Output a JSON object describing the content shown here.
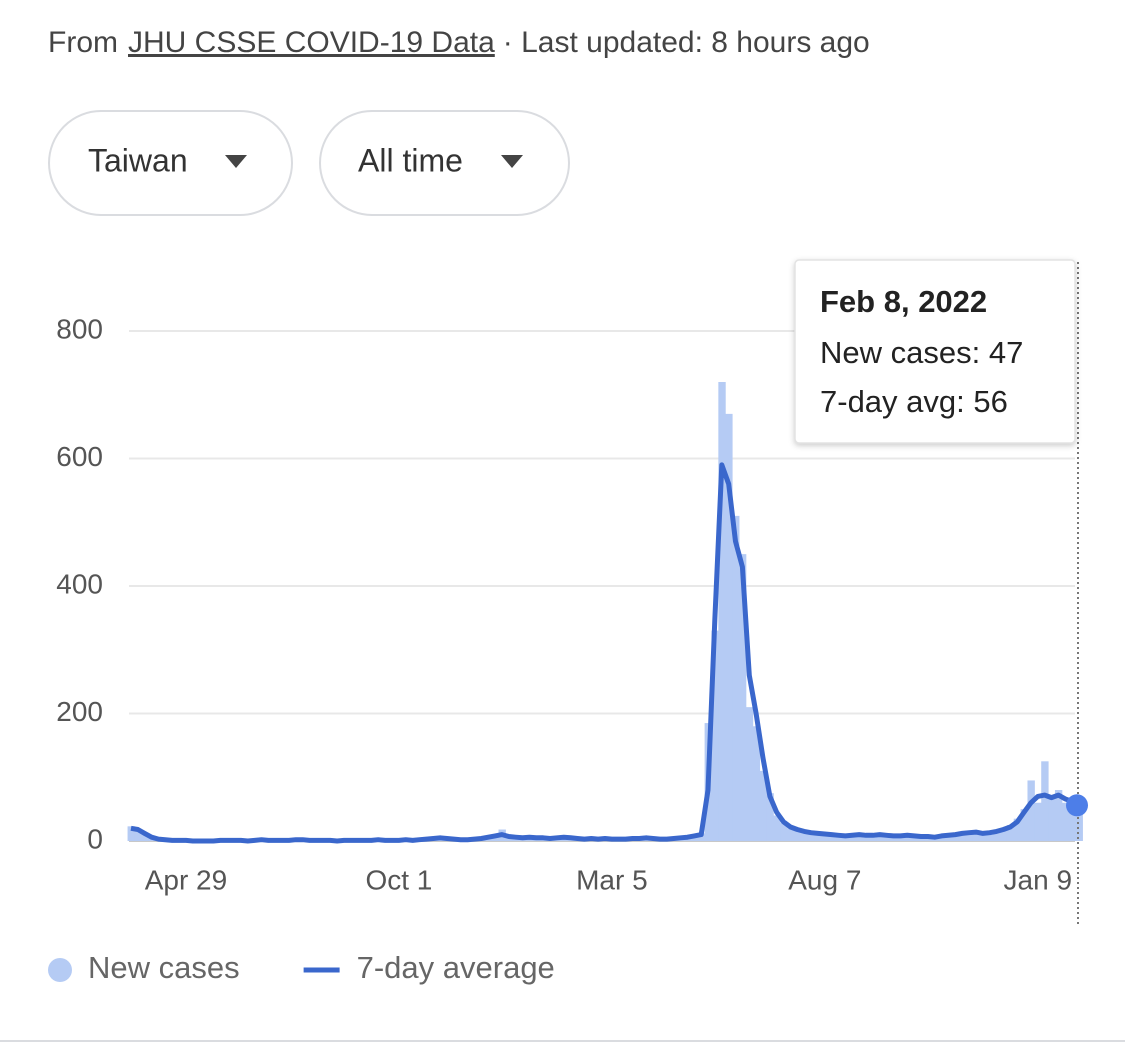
{
  "header": {
    "prefix": "From",
    "source": "JHU CSSE COVID-19 Data",
    "updated": "· Last updated: 8 hours ago"
  },
  "filters": [
    "Taiwan",
    "All time"
  ],
  "chart_data": {
    "type": "combo",
    "ylim": [
      0,
      800
    ],
    "yticks": [
      0,
      200,
      400,
      600,
      800
    ],
    "grid": true,
    "legend": "bottom-left",
    "categories": [
      null,
      null,
      null,
      null,
      null,
      null,
      null,
      null,
      "Apr 29",
      null,
      null,
      null,
      null,
      null,
      null,
      null,
      null,
      null,
      null,
      null,
      null,
      null,
      null,
      null,
      null,
      null,
      null,
      null,
      null,
      null,
      null,
      null,
      null,
      null,
      null,
      null,
      null,
      null,
      null,
      "Oct 1",
      null,
      null,
      null,
      null,
      null,
      null,
      null,
      null,
      null,
      null,
      null,
      null,
      null,
      null,
      null,
      null,
      null,
      null,
      null,
      null,
      null,
      null,
      null,
      null,
      null,
      null,
      null,
      null,
      null,
      null,
      "Mar 5",
      null,
      null,
      null,
      null,
      null,
      null,
      null,
      null,
      null,
      null,
      null,
      null,
      null,
      null,
      null,
      null,
      null,
      null,
      null,
      null,
      null,
      null,
      null,
      null,
      null,
      null,
      null,
      null,
      null,
      null,
      "Aug 7",
      null,
      null,
      null,
      null,
      null,
      null,
      null,
      null,
      null,
      null,
      null,
      null,
      null,
      null,
      null,
      null,
      null,
      null,
      null,
      null,
      null,
      null,
      null,
      null,
      null,
      null,
      null,
      null,
      null,
      null,
      "Jan 9",
      null,
      null,
      null,
      null,
      null,
      null
    ],
    "series": [
      {
        "name": "New cases",
        "type": "bar",
        "color": "#b5cbf4",
        "values": [
          23,
          15,
          10,
          4,
          2,
          3,
          0,
          1,
          0,
          0,
          1,
          0,
          0,
          2,
          0,
          1,
          3,
          0,
          1,
          4,
          0,
          2,
          1,
          0,
          3,
          2,
          1,
          0,
          2,
          1,
          0,
          1,
          2,
          1,
          1,
          0,
          3,
          2,
          1,
          0,
          3,
          0,
          2,
          4,
          5,
          7,
          3,
          2,
          1,
          4,
          2,
          5,
          8,
          10,
          18,
          6,
          5,
          4,
          7,
          3,
          6,
          4,
          5,
          8,
          3,
          5,
          2,
          4,
          3,
          6,
          2,
          4,
          2,
          5,
          3,
          6,
          3,
          4,
          2,
          5,
          7,
          6,
          9,
          12,
          185,
          330,
          720,
          670,
          510,
          450,
          210,
          180,
          110,
          75,
          40,
          28,
          20,
          16,
          14,
          12,
          10,
          9,
          12,
          8,
          6,
          10,
          11,
          8,
          7,
          12,
          10,
          6,
          9,
          10,
          7,
          5,
          8,
          5,
          9,
          8,
          12,
          14,
          11,
          16,
          13,
          10,
          18,
          20,
          25,
          35,
          50,
          95,
          60,
          125,
          70,
          80,
          60,
          55,
          47
        ]
      },
      {
        "name": "7-day average",
        "type": "line",
        "color": "#3a67cc",
        "values": [
          20,
          18,
          12,
          6,
          3,
          2,
          1,
          1,
          1,
          0,
          0,
          0,
          0,
          1,
          1,
          1,
          1,
          0,
          1,
          2,
          1,
          1,
          1,
          1,
          2,
          2,
          1,
          1,
          1,
          1,
          0,
          1,
          1,
          1,
          1,
          1,
          2,
          1,
          1,
          1,
          2,
          1,
          2,
          3,
          4,
          5,
          4,
          3,
          2,
          2,
          3,
          4,
          6,
          8,
          10,
          7,
          6,
          5,
          6,
          5,
          5,
          4,
          5,
          6,
          5,
          4,
          3,
          4,
          3,
          4,
          3,
          3,
          3,
          4,
          4,
          5,
          4,
          3,
          3,
          4,
          5,
          6,
          8,
          10,
          80,
          350,
          590,
          560,
          470,
          430,
          260,
          200,
          130,
          70,
          45,
          30,
          22,
          18,
          15,
          13,
          12,
          11,
          10,
          9,
          8,
          9,
          10,
          9,
          9,
          10,
          9,
          8,
          8,
          9,
          8,
          7,
          7,
          6,
          8,
          9,
          10,
          12,
          13,
          14,
          12,
          13,
          15,
          18,
          22,
          30,
          45,
          60,
          70,
          72,
          68,
          72,
          66,
          62,
          56
        ]
      }
    ],
    "tooltip": {
      "title": "Feb 8, 2022",
      "lines": [
        "New cases: 47",
        "7-day avg: 56"
      ]
    }
  }
}
